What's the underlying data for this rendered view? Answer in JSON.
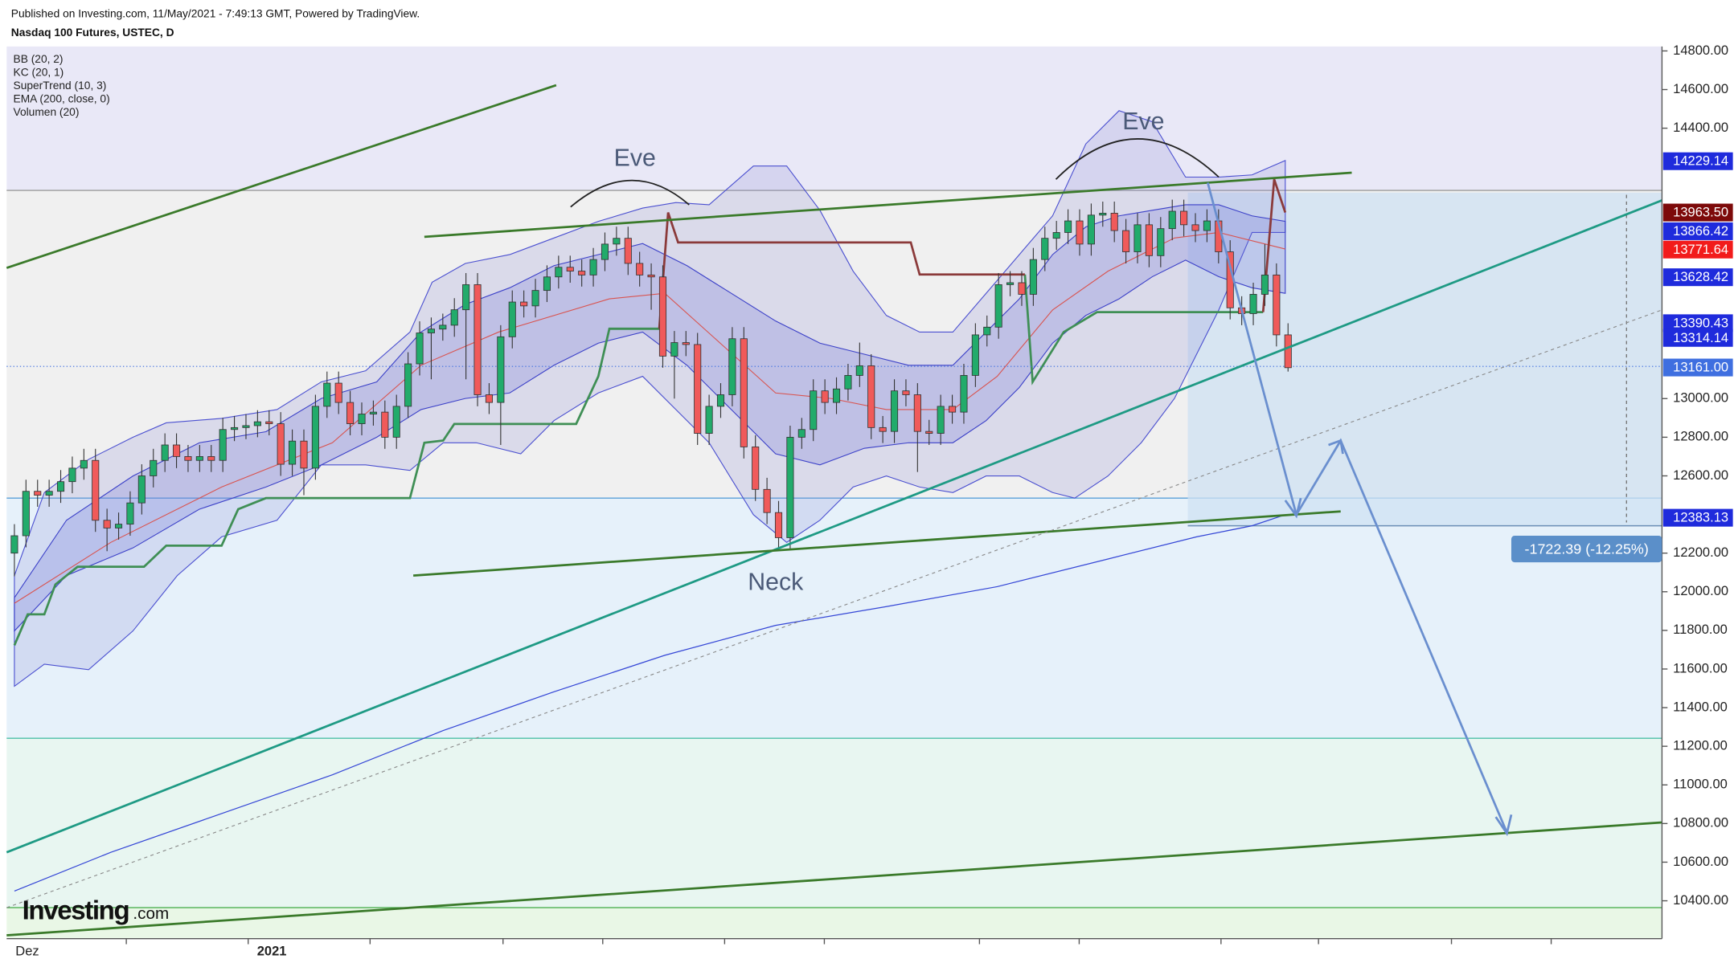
{
  "chart_data": {
    "type": "candlestick",
    "published": "Published on Investing.com, 11/May/2021 - 7:49:13 GMT, Powered by TradingView.",
    "title": "Nasdaq 100 Futures, USTEC, D",
    "indicators": [
      "BB (20, 2)",
      "KC (20, 1)",
      "SuperTrend (10, 3)",
      "EMA (200, close, 0)",
      "Volumen (20)"
    ],
    "x_labels": [
      "Dez",
      "2021"
    ],
    "up_color": "#22ab6b",
    "down_color": "#f05a5a",
    "open": [
      12200,
      12290,
      12520,
      12500,
      12520,
      12570,
      12640,
      12680,
      12370,
      12330,
      12350,
      12460,
      12600,
      12680,
      12760,
      12700,
      12680,
      12700,
      12680,
      12840,
      12850,
      12860,
      12880,
      12870,
      12660,
      12780,
      12640,
      12960,
      13080,
      12980,
      12870,
      12920,
      12930,
      12800,
      12960,
      13180,
      13340,
      13360,
      13380,
      13460,
      13590,
      13020,
      12980,
      13320,
      13500,
      13480,
      13560,
      13630,
      13680,
      13660,
      13640,
      13720,
      13800,
      13830,
      13700,
      13640,
      13630,
      13220,
      13290,
      13280,
      12820,
      12960,
      13020,
      13310,
      12750,
      12530,
      12410,
      12280,
      12800,
      12840,
      13040,
      12980,
      13050,
      13120,
      13170,
      12850,
      12830,
      13040,
      13020,
      12830,
      12820,
      12960,
      12930,
      13120,
      13330,
      13370,
      13590,
      13600,
      13540,
      13720,
      13830,
      13860,
      13920,
      13800,
      13950,
      13960,
      13870,
      13760,
      13900,
      13740,
      13880,
      13970,
      13900,
      13870,
      13920,
      13760,
      13470,
      13440,
      13540,
      13640,
      13330
    ],
    "high": [
      12350,
      12580,
      12580,
      12580,
      12630,
      12700,
      12740,
      12740,
      12430,
      12410,
      12520,
      12660,
      12740,
      12820,
      12820,
      12760,
      12760,
      12760,
      12900,
      12910,
      12920,
      12940,
      12940,
      12930,
      12840,
      12840,
      13020,
      13140,
      13140,
      13040,
      12980,
      12990,
      12990,
      13020,
      13240,
      13400,
      13420,
      13440,
      13520,
      13650,
      13650,
      13080,
      13380,
      13560,
      13560,
      13620,
      13690,
      13740,
      13740,
      13720,
      13780,
      13860,
      13890,
      13890,
      13760,
      13700,
      13690,
      13350,
      13350,
      13340,
      13020,
      13080,
      13370,
      13370,
      12810,
      12590,
      12470,
      12860,
      12900,
      13100,
      13100,
      13110,
      13180,
      13290,
      13230,
      12910,
      13100,
      13100,
      13080,
      12890,
      13020,
      13020,
      13180,
      13390,
      13430,
      13650,
      13660,
      13660,
      13780,
      13890,
      13920,
      13980,
      13980,
      14010,
      14020,
      14020,
      13930,
      13960,
      13960,
      13940,
      14030,
      14030,
      13960,
      13980,
      13980,
      13820,
      13530,
      13600,
      13800,
      13700,
      13390
    ],
    "low": [
      12080,
      12230,
      12440,
      12440,
      12460,
      12510,
      12580,
      12310,
      12210,
      12270,
      12290,
      12400,
      12540,
      12620,
      12640,
      12620,
      12620,
      12620,
      12620,
      12780,
      12790,
      12800,
      12810,
      12600,
      12600,
      12500,
      12580,
      12900,
      12920,
      12810,
      12810,
      12860,
      12740,
      12740,
      12900,
      13120,
      13100,
      13300,
      13320,
      13100,
      12960,
      12920,
      12760,
      13260,
      13420,
      13420,
      13500,
      13570,
      13600,
      13580,
      13580,
      13660,
      13740,
      13640,
      13580,
      13460,
      13160,
      13000,
      13220,
      12760,
      12760,
      12900,
      12960,
      12690,
      12470,
      12350,
      12220,
      12220,
      12740,
      12780,
      12920,
      12920,
      12990,
      13060,
      12790,
      12770,
      12770,
      12960,
      12620,
      12760,
      12760,
      12870,
      12870,
      13060,
      13270,
      13310,
      13530,
      13480,
      13480,
      13660,
      13770,
      13800,
      13740,
      13740,
      13890,
      13810,
      13700,
      13700,
      13680,
      13680,
      13820,
      13840,
      13810,
      13810,
      13700,
      13410,
      13380,
      13380,
      13480,
      13270,
      13140
    ],
    "close": [
      12290,
      12520,
      12500,
      12520,
      12570,
      12640,
      12680,
      12370,
      12330,
      12350,
      12460,
      12600,
      12680,
      12760,
      12700,
      12680,
      12700,
      12680,
      12840,
      12850,
      12860,
      12880,
      12870,
      12660,
      12780,
      12640,
      12960,
      13080,
      12980,
      12870,
      12920,
      12930,
      12800,
      12960,
      13180,
      13340,
      13360,
      13380,
      13460,
      13590,
      13020,
      12980,
      13320,
      13500,
      13480,
      13560,
      13630,
      13680,
      13660,
      13640,
      13720,
      13800,
      13830,
      13700,
      13640,
      13630,
      13220,
      13290,
      13280,
      12820,
      12960,
      13020,
      13310,
      12750,
      12530,
      12410,
      12280,
      12800,
      12840,
      13040,
      12980,
      13050,
      13120,
      13170,
      12850,
      12830,
      13040,
      13020,
      12830,
      12820,
      12960,
      12930,
      13120,
      13330,
      13370,
      13590,
      13600,
      13540,
      13720,
      13830,
      13860,
      13920,
      13800,
      13950,
      13960,
      13870,
      13760,
      13900,
      13740,
      13880,
      13970,
      13900,
      13870,
      13920,
      13760,
      13470,
      13440,
      13540,
      13640,
      13330,
      13160
    ],
    "ylim": [
      10204,
      14823
    ],
    "yticks": [
      {
        "value": 14800,
        "label": "14800.00"
      },
      {
        "value": 14600,
        "label": "14600.00"
      },
      {
        "value": 14400,
        "label": "14400.00"
      },
      {
        "value": 13000,
        "label": "13000.00"
      },
      {
        "value": 12800,
        "label": "12800.00"
      },
      {
        "value": 12600,
        "label": "12600.00"
      },
      {
        "value": 12200,
        "label": "12200.00"
      },
      {
        "value": 12000,
        "label": "12000.00"
      },
      {
        "value": 11800,
        "label": "11800.00"
      },
      {
        "value": 11600,
        "label": "11600.00"
      },
      {
        "value": 11400,
        "label": "11400.00"
      },
      {
        "value": 11200,
        "label": "11200.00"
      },
      {
        "value": 11000,
        "label": "11000.00"
      },
      {
        "value": 10800,
        "label": "10800.00"
      },
      {
        "value": 10600,
        "label": "10600.00"
      },
      {
        "value": 10400,
        "label": "10400.00"
      }
    ],
    "price_tags": [
      {
        "value": 14229.14,
        "label": "14229.14",
        "color": "#1f2bdc"
      },
      {
        "value": 13963.5,
        "label": "13963.50",
        "color": "#7d0a0a"
      },
      {
        "value": 13866.42,
        "label": "13866.42",
        "color": "#1f2bdc"
      },
      {
        "value": 13771.64,
        "label": "13771.64",
        "color": "#f21b1b"
      },
      {
        "value": 13628.42,
        "label": "13628.42",
        "color": "#1f2bdc"
      },
      {
        "value": 13390.43,
        "label": "13390.43",
        "color": "#1f2bdc"
      },
      {
        "value": 13314.14,
        "label": "13314.14",
        "color": "#1f2bdc"
      },
      {
        "value": 13161,
        "label": "13161.00",
        "color": "#3f6fe0"
      },
      {
        "value": 12383.13,
        "label": "12383.13",
        "color": "#1f2bdc"
      }
    ],
    "annotations": [
      "Eve",
      "Eve",
      "Neck"
    ],
    "measure": "-1722.39 (-12.25%)",
    "logo": "Investing",
    "logo_suffix": ".com"
  }
}
